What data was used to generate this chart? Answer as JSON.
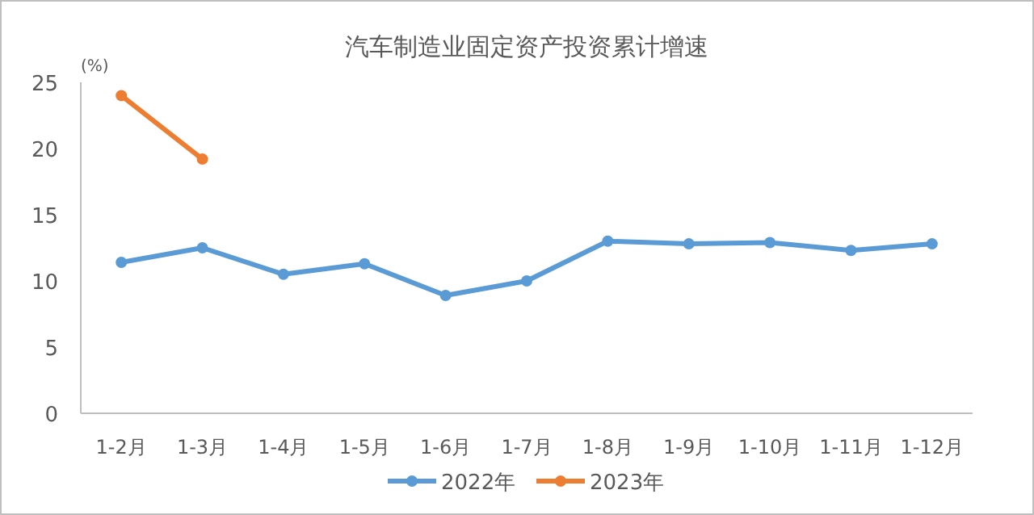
{
  "chart_data": {
    "type": "line",
    "title": "汽车制造业固定资产投资累计增速",
    "ylabel": "(%)",
    "categories": [
      "1-2月",
      "1-3月",
      "1-4月",
      "1-5月",
      "1-6月",
      "1-7月",
      "1-8月",
      "1-9月",
      "1-10月",
      "1-11月",
      "1-12月"
    ],
    "series": [
      {
        "name": "2022年",
        "color": "#5b9bd5",
        "values": [
          11.4,
          12.5,
          10.5,
          11.3,
          8.9,
          10.0,
          13.0,
          12.8,
          12.9,
          12.3,
          12.8
        ]
      },
      {
        "name": "2023年",
        "color": "#ed7d31",
        "values": [
          24.0,
          19.2,
          null,
          null,
          null,
          null,
          null,
          null,
          null,
          null,
          null
        ]
      }
    ],
    "ylim": [
      0,
      25
    ],
    "yticks": [
      0,
      5,
      10,
      15,
      20,
      25
    ],
    "grid": false,
    "legend": "bottom",
    "marker": "circle",
    "line_style": "solid"
  }
}
